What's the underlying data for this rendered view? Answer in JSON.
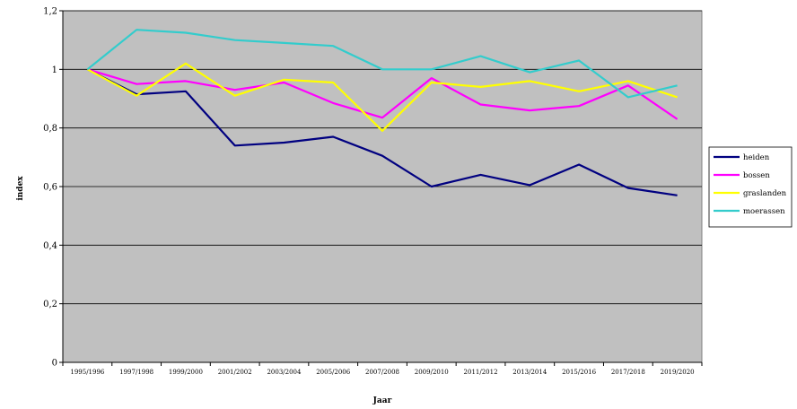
{
  "chart_data": {
    "type": "line",
    "title": "",
    "xlabel": "Jaar",
    "ylabel": "index",
    "ylim": [
      0,
      1.2
    ],
    "y_ticks": [
      "0",
      "0,2",
      "0,4",
      "0,6",
      "0,8",
      "1",
      "1,2"
    ],
    "y_tick_values": [
      0,
      0.2,
      0.4,
      0.6,
      0.8,
      1.0,
      1.2
    ],
    "grid": true,
    "legend_position": "right",
    "plot_background": "#c0c0c0",
    "categories": [
      "1995/1996",
      "1997/1998",
      "1999/2000",
      "2001/2002",
      "2003/2004",
      "2005/2006",
      "2007/2008",
      "2009/2010",
      "2011/2012",
      "2013/2014",
      "2015/2016",
      "2017/2018",
      "2019/2020"
    ],
    "series": [
      {
        "name": "heiden",
        "color": "#000080",
        "values": [
          1.0,
          0.915,
          0.925,
          0.74,
          0.75,
          0.77,
          0.705,
          0.6,
          0.64,
          0.605,
          0.675,
          0.595,
          0.57
        ]
      },
      {
        "name": "bossen",
        "color": "#ff00ff",
        "values": [
          1.0,
          0.95,
          0.96,
          0.93,
          0.955,
          0.885,
          0.835,
          0.97,
          0.88,
          0.86,
          0.875,
          0.945,
          0.83
        ]
      },
      {
        "name": "graslanden",
        "color": "#ffff00",
        "values": [
          1.0,
          0.91,
          1.02,
          0.91,
          0.965,
          0.955,
          0.79,
          0.955,
          0.94,
          0.96,
          0.925,
          0.96,
          0.905
        ]
      },
      {
        "name": "moerassen",
        "color": "#33cccc",
        "values": [
          1.0,
          1.135,
          1.125,
          1.1,
          1.09,
          1.08,
          1.0,
          1.0,
          1.045,
          0.99,
          1.03,
          0.905,
          0.945
        ]
      }
    ]
  }
}
